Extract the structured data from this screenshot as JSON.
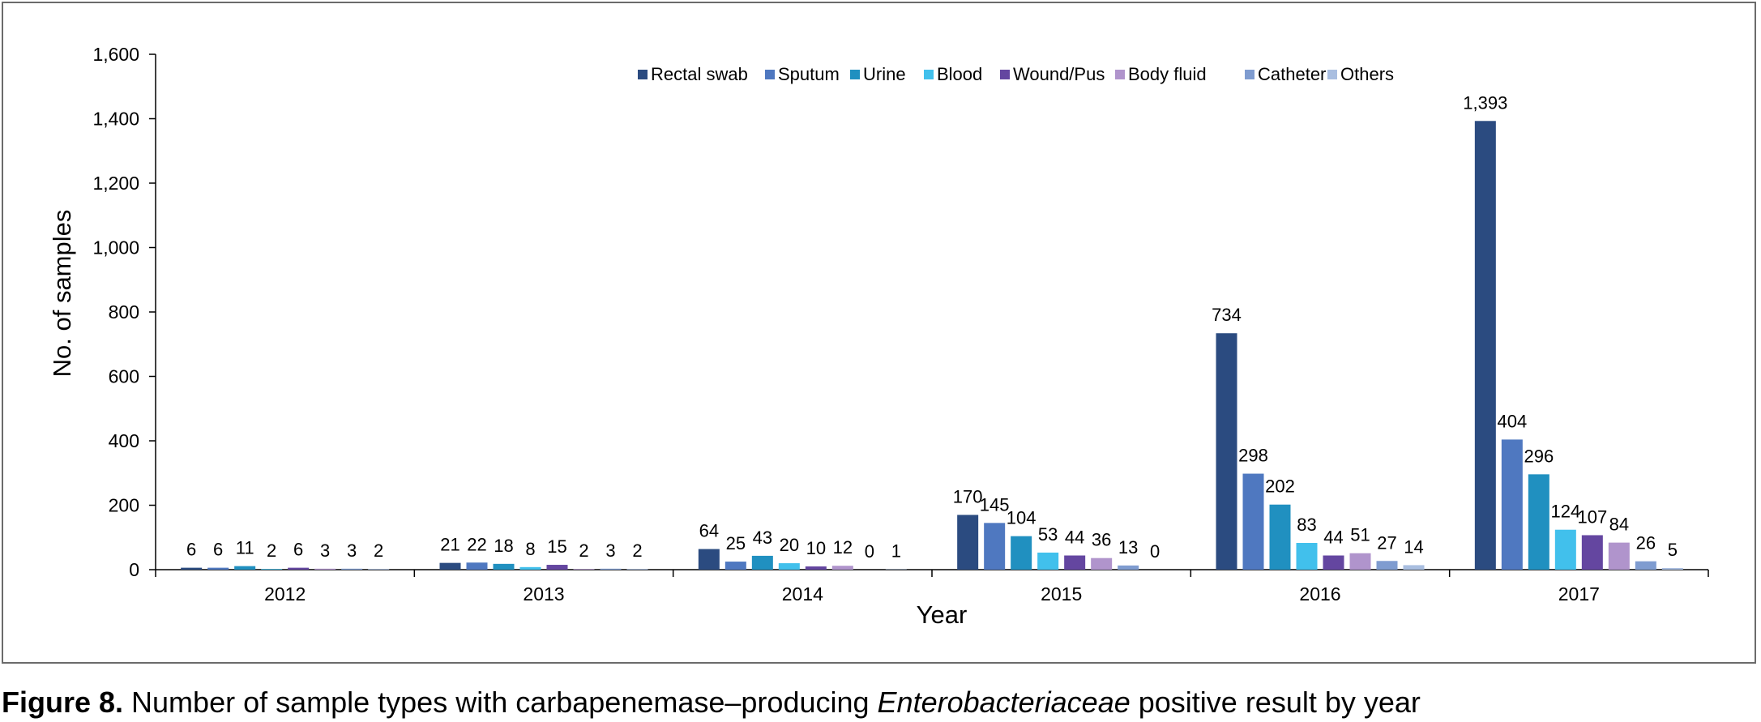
{
  "chart_data": {
    "type": "bar",
    "title": "",
    "xlabel": "Year",
    "ylabel": "No. of samples",
    "ylim": [
      0,
      1600
    ],
    "yticks": [
      0,
      200,
      400,
      600,
      800,
      1000,
      1200,
      1400,
      1600
    ],
    "ytick_labels": [
      "0",
      "200",
      "400",
      "600",
      "800",
      "1,000",
      "1,200",
      "1,400",
      "1,600"
    ],
    "categories": [
      "2012",
      "2013",
      "2014",
      "2015",
      "2016",
      "2017"
    ],
    "grid": false,
    "legend_position": "top-center",
    "series": [
      {
        "name": "Rectal swab",
        "color": "#2b4b80",
        "values": [
          6,
          21,
          64,
          170,
          734,
          1393
        ],
        "labels": [
          "6",
          "21",
          "64",
          "170",
          "734",
          "1,393"
        ]
      },
      {
        "name": "Sputum",
        "color": "#4f78c0",
        "values": [
          6,
          22,
          25,
          145,
          298,
          404
        ],
        "labels": [
          "6",
          "22",
          "25",
          "145",
          "298",
          "404"
        ]
      },
      {
        "name": "Urine",
        "color": "#2090c0",
        "values": [
          11,
          18,
          43,
          104,
          202,
          296
        ],
        "labels": [
          "11",
          "18",
          "43",
          "104",
          "202",
          "296"
        ]
      },
      {
        "name": "Blood",
        "color": "#41c0ec",
        "values": [
          2,
          8,
          20,
          53,
          83,
          124
        ],
        "labels": [
          "2",
          "8",
          "20",
          "53",
          "83",
          "124"
        ]
      },
      {
        "name": "Wound/Pus",
        "color": "#6446a0",
        "values": [
          6,
          15,
          10,
          44,
          44,
          107
        ],
        "labels": [
          "6",
          "15",
          "10",
          "44",
          "44",
          "107"
        ]
      },
      {
        "name": "Body fluid",
        "color": "#b094cc",
        "values": [
          3,
          2,
          12,
          36,
          51,
          84
        ],
        "labels": [
          "3",
          "2",
          "12",
          "36",
          "51",
          "84"
        ]
      },
      {
        "name": "Catheter",
        "color": "#7f9cd0",
        "values": [
          3,
          3,
          0,
          13,
          27,
          26
        ],
        "labels": [
          "3",
          "3",
          "0",
          "13",
          "27",
          "26"
        ]
      },
      {
        "name": "Others",
        "color": "#a9bee0",
        "values": [
          2,
          2,
          1,
          0,
          14,
          5
        ],
        "labels": [
          "2",
          "2",
          "1",
          "0",
          "14",
          "5"
        ]
      }
    ]
  },
  "caption": {
    "label": "Figure 8.",
    "text_before": " Number of sample types with carbapenemase–producing ",
    "italic": "Enterobacteriaceae",
    "text_after": " positive result by year"
  }
}
